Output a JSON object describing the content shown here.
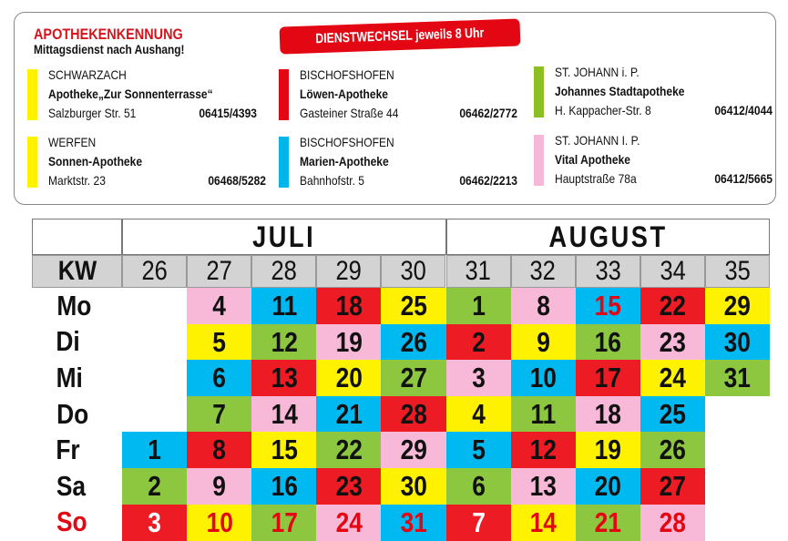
{
  "legend": {
    "title": "APOTHEKENKENNUNG",
    "subtitle": "Mittagsdienst nach Aushang!",
    "badge": "DIENSTWECHSEL jeweils 8 Uhr",
    "pharmacies": [
      {
        "town": "SCHWARZACH",
        "name": "Apotheke„Zur Sonnenterrasse“",
        "address": "Salzburger Str. 51",
        "phone": "06415/4393",
        "color": "#FFF200"
      },
      {
        "town": "WERFEN",
        "name": "Sonnen-Apotheke",
        "address": "Marktstr. 23",
        "phone": "06468/5282",
        "color": "#FFF200"
      },
      {
        "town": "BISCHOFSHOFEN",
        "name": "Löwen-Apotheke",
        "address": "Gasteiner Straße 44",
        "phone": "06462/2772",
        "color": "#E30613"
      },
      {
        "town": "BISCHOFSHOFEN",
        "name": "Marien-Apotheke",
        "address": "Bahnhofstr. 5",
        "phone": "06462/2213",
        "color": "#00B5EA"
      },
      {
        "town": "ST. JOHANN i. P.",
        "name": "Johannes Stadtapotheke",
        "address": "H. Kappacher-Str. 8",
        "phone": "06412/4044",
        "color": "#8DBE22"
      },
      {
        "town": "ST. JOHANN I. P.",
        "name": "Vital Apotheke",
        "address": "Hauptstraße 78a",
        "phone": "06412/5665",
        "color": "#F5B9D6"
      }
    ]
  },
  "colors": {
    "Y": "#FFF200",
    "R": "#ED1C24",
    "G": "#8DC63F",
    "B": "#00B9F1",
    "P": "#F7B9D7"
  },
  "calendar": {
    "months": [
      "JULI",
      "AUGUST"
    ],
    "kw_label": "KW",
    "weeks": [
      "26",
      "27",
      "28",
      "29",
      "30",
      "31",
      "32",
      "33",
      "34",
      "35"
    ],
    "days": [
      "Mo",
      "Di",
      "Mi",
      "Do",
      "Fr",
      "Sa",
      "So"
    ],
    "cells": [
      [
        null,
        null,
        null,
        null,
        [
          "1",
          "B"
        ],
        [
          "2",
          "G"
        ],
        [
          "3",
          "R"
        ]
      ],
      [
        [
          "4",
          "P"
        ],
        [
          "5",
          "Y"
        ],
        [
          "6",
          "B"
        ],
        [
          "7",
          "G"
        ],
        [
          "8",
          "R"
        ],
        [
          "9",
          "P"
        ],
        [
          "10",
          "Y"
        ]
      ],
      [
        [
          "11",
          "B"
        ],
        [
          "12",
          "G"
        ],
        [
          "13",
          "R"
        ],
        [
          "14",
          "P"
        ],
        [
          "15",
          "Y"
        ],
        [
          "16",
          "B"
        ],
        [
          "17",
          "G"
        ]
      ],
      [
        [
          "18",
          "R"
        ],
        [
          "19",
          "P"
        ],
        [
          "20",
          "Y"
        ],
        [
          "21",
          "B"
        ],
        [
          "22",
          "G"
        ],
        [
          "23",
          "R"
        ],
        [
          "24",
          "P"
        ]
      ],
      [
        [
          "25",
          "Y"
        ],
        [
          "26",
          "B"
        ],
        [
          "27",
          "G"
        ],
        [
          "28",
          "R"
        ],
        [
          "29",
          "P"
        ],
        [
          "30",
          "Y"
        ],
        [
          "31",
          "B"
        ]
      ],
      [
        [
          "1",
          "G"
        ],
        [
          "2",
          "R"
        ],
        [
          "3",
          "P"
        ],
        [
          "4",
          "Y"
        ],
        [
          "5",
          "B"
        ],
        [
          "6",
          "G"
        ],
        [
          "7",
          "R"
        ]
      ],
      [
        [
          "8",
          "P"
        ],
        [
          "9",
          "Y"
        ],
        [
          "10",
          "B"
        ],
        [
          "11",
          "G"
        ],
        [
          "12",
          "R"
        ],
        [
          "13",
          "P"
        ],
        [
          "14",
          "Y"
        ]
      ],
      [
        [
          "15",
          "B",
          "holiday"
        ],
        [
          "16",
          "G"
        ],
        [
          "17",
          "R"
        ],
        [
          "18",
          "P"
        ],
        [
          "19",
          "Y"
        ],
        [
          "20",
          "B"
        ],
        [
          "21",
          "G"
        ]
      ],
      [
        [
          "22",
          "R"
        ],
        [
          "23",
          "P"
        ],
        [
          "24",
          "Y"
        ],
        [
          "25",
          "B"
        ],
        [
          "26",
          "G"
        ],
        [
          "27",
          "R"
        ],
        [
          "28",
          "P"
        ]
      ],
      [
        [
          "29",
          "Y"
        ],
        [
          "30",
          "B"
        ],
        [
          "31",
          "G"
        ],
        null,
        null,
        null,
        null
      ]
    ]
  }
}
